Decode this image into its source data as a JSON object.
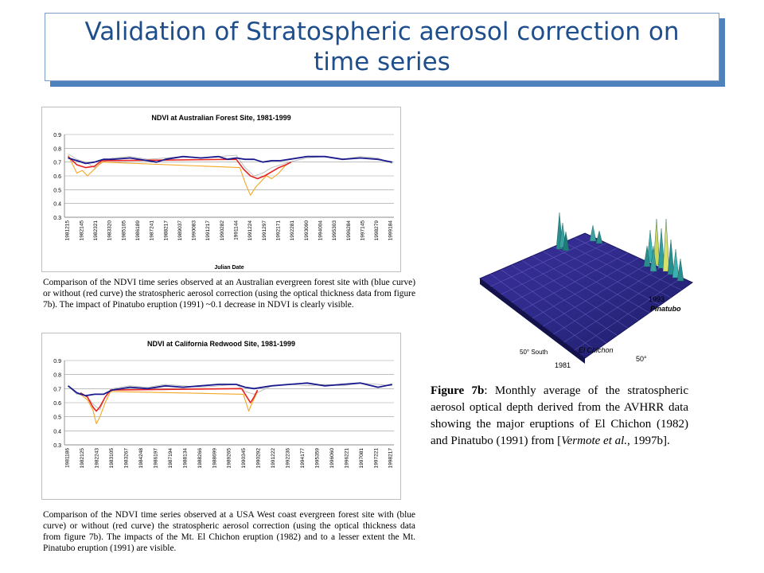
{
  "slide": {
    "title": "Validation of Stratospheric aerosol correction on time series",
    "caption1": "Comparison of the NDVI time series observed at an Australian evergreen forest site with (blue curve) or without (red curve) the stratospheric aerosol correction (using the optical thickness data from figure 7b). The impact of Pinatubo eruption (1991) ~0.1 decrease in NDVI is clearly visible.",
    "caption2": "Comparison of the NDVI time series observed at a USA West coast evergreen forest site with (blue curve) or without (red curve) the stratospheric aerosol correction (using the optical thickness data from figure 7b). The impacts of the Mt. El Chichon eruption (1982) and to a lesser extent the Mt. Pinatubo eruption (1991) are visible.",
    "figure_caption": {
      "label": "Figure 7b",
      "text_before": ": Monthly average of the stratospheric aerosol optical depth derived from the AVHRR data showing the major eruptions of El Chichon (1982) and Pinatubo (1991) from [",
      "citation": "Vermote et al.",
      "text_after": ", 1997b]."
    }
  },
  "colors": {
    "title_text": "#1f4e8c",
    "title_shadow": "#4f81bd",
    "blue_curve": "#1a1a8c",
    "red_curve": "#e8231f",
    "orange_curve": "#f5a623",
    "gray_curve": "#b3b3b3"
  },
  "chart_data": [
    {
      "type": "line",
      "title": "NDVI at Australian Forest Site, 1981-1999",
      "xlabel": "Julian Date",
      "ylabel": "",
      "ylim": [
        0.3,
        0.9
      ],
      "yticks": [
        "0.3",
        "0.4",
        "0.5",
        "0.6",
        "0.7",
        "0.8",
        "0.9"
      ],
      "xtick_labels": [
        "1981215",
        "1982145",
        "1982321",
        "1983320",
        "1985105",
        "1986189",
        "1987241",
        "1988217",
        "1989037",
        "1990083",
        "1991217",
        "1990282",
        "1991144",
        "1991224",
        "1991297",
        "1992171",
        "1992281",
        "1993090",
        "1994004",
        "1995303",
        "1996284",
        "1997145",
        "1998279",
        "1999184"
      ],
      "grid": true,
      "series": [
        {
          "key": "raw",
          "color": "gray_curve",
          "x": [
            1981.5,
            1982.0,
            1982.5,
            1983.0,
            1983.5,
            1984.0,
            1985.0,
            1986.0,
            1987.0,
            1988.0,
            1989.0,
            1990.0,
            1991.0,
            1991.5,
            1992.0,
            1992.5,
            1993.0,
            1994.0,
            1995.0,
            1996.0,
            1997.0,
            1998.0,
            1999.0,
            1999.8
          ],
          "y": [
            0.76,
            0.72,
            0.7,
            0.66,
            0.7,
            0.73,
            0.74,
            0.72,
            0.73,
            0.74,
            0.73,
            0.74,
            0.75,
            0.66,
            0.6,
            0.62,
            0.66,
            0.7,
            0.73,
            0.74,
            0.72,
            0.74,
            0.73,
            0.69
          ]
        },
        {
          "key": "without correction",
          "color": "orange_curve",
          "x": [
            1981.5,
            1982.0,
            1982.3,
            1982.6,
            1983.0,
            1983.4,
            1991.2,
            1991.5,
            1991.8,
            1992.1,
            1992.4,
            1992.7,
            1993.0,
            1993.4,
            1993.8
          ],
          "y": [
            0.75,
            0.62,
            0.64,
            0.6,
            0.65,
            0.7,
            0.66,
            0.55,
            0.46,
            0.52,
            0.56,
            0.6,
            0.58,
            0.62,
            0.68
          ]
        },
        {
          "key": "red curve",
          "color": "red_curve",
          "x": [
            1981.5,
            1982.0,
            1982.5,
            1983.0,
            1983.4,
            1991.0,
            1991.4,
            1991.8,
            1992.2,
            1992.6,
            1993.0,
            1993.4,
            1993.8,
            1994.1
          ],
          "y": [
            0.74,
            0.68,
            0.66,
            0.67,
            0.71,
            0.72,
            0.65,
            0.6,
            0.58,
            0.6,
            0.63,
            0.66,
            0.68,
            0.7
          ]
        },
        {
          "key": "blue curve",
          "color": "blue_curve",
          "x": [
            1981.5,
            1982.0,
            1982.5,
            1983.0,
            1983.5,
            1984.0,
            1985.0,
            1986.0,
            1986.5,
            1987.0,
            1988.0,
            1989.0,
            1990.0,
            1990.5,
            1991.0,
            1991.5,
            1992.0,
            1992.5,
            1993.0,
            1993.5,
            1994.0,
            1995.0,
            1996.0,
            1997.0,
            1998.0,
            1999.0,
            1999.8
          ],
          "y": [
            0.73,
            0.71,
            0.69,
            0.7,
            0.72,
            0.72,
            0.73,
            0.71,
            0.7,
            0.72,
            0.74,
            0.73,
            0.74,
            0.72,
            0.73,
            0.72,
            0.72,
            0.7,
            0.71,
            0.71,
            0.72,
            0.74,
            0.74,
            0.72,
            0.73,
            0.72,
            0.7
          ]
        }
      ]
    },
    {
      "type": "line",
      "title": "NDVI at California Redwood Site, 1981-1999",
      "xlabel": "",
      "ylabel": "",
      "ylim": [
        0.3,
        0.9
      ],
      "yticks": [
        "0.3",
        "0.4",
        "0.5",
        "0.6",
        "0.7",
        "0.8",
        "0.9"
      ],
      "xtick_labels": [
        "1981186",
        "1982125",
        "1982243",
        "1983105",
        "1983267",
        "1984248",
        "1986197",
        "1987194",
        "1988134",
        "1988266",
        "1988699",
        "1989265",
        "1990345",
        "1990292",
        "1991222",
        "1992236",
        "1994177",
        "1995359",
        "1996060",
        "1996221",
        "1997081",
        "1997221",
        "1998217"
      ],
      "grid": true,
      "series": [
        {
          "key": "raw",
          "color": "gray_curve",
          "x": [
            1981.5,
            1982.0,
            1982.5,
            1983.0,
            1983.3,
            1983.6,
            1984.0,
            1985.0,
            1986.0,
            1987.0,
            1988.0,
            1989.0,
            1990.0,
            1991.0,
            1991.5,
            1992.0,
            1993.0,
            1994.0,
            1995.0,
            1996.0,
            1997.0,
            1998.0,
            1999.0,
            1999.8
          ],
          "y": [
            0.72,
            0.66,
            0.65,
            0.58,
            0.55,
            0.64,
            0.7,
            0.72,
            0.71,
            0.73,
            0.72,
            0.71,
            0.72,
            0.73,
            0.68,
            0.66,
            0.72,
            0.73,
            0.72,
            0.73,
            0.72,
            0.74,
            0.73,
            0.72
          ]
        },
        {
          "key": "without correction",
          "color": "orange_curve",
          "x": [
            1982.2,
            1982.6,
            1982.9,
            1983.1,
            1983.3,
            1983.6,
            1983.9,
            1991.4,
            1991.7,
            1991.9,
            1992.2
          ],
          "y": [
            0.66,
            0.62,
            0.55,
            0.45,
            0.5,
            0.6,
            0.68,
            0.66,
            0.54,
            0.6,
            0.68
          ]
        },
        {
          "key": "red curve",
          "color": "red_curve",
          "x": [
            1982.2,
            1982.6,
            1982.9,
            1983.1,
            1983.3,
            1983.6,
            1983.9,
            1991.3,
            1991.6,
            1991.8,
            1992.0,
            1992.2
          ],
          "y": [
            0.67,
            0.64,
            0.57,
            0.54,
            0.57,
            0.64,
            0.69,
            0.7,
            0.64,
            0.6,
            0.64,
            0.69
          ]
        },
        {
          "key": "blue curve",
          "color": "blue_curve",
          "x": [
            1981.5,
            1982.0,
            1982.5,
            1983.0,
            1983.5,
            1984.0,
            1985.0,
            1986.0,
            1987.0,
            1988.0,
            1989.0,
            1990.0,
            1991.0,
            1991.5,
            1992.0,
            1993.0,
            1994.0,
            1995.0,
            1996.0,
            1997.0,
            1998.0,
            1999.0,
            1999.8
          ],
          "y": [
            0.72,
            0.67,
            0.65,
            0.66,
            0.66,
            0.69,
            0.71,
            0.7,
            0.72,
            0.71,
            0.72,
            0.73,
            0.73,
            0.71,
            0.7,
            0.72,
            0.73,
            0.74,
            0.72,
            0.73,
            0.74,
            0.71,
            0.73
          ]
        }
      ]
    }
  ],
  "figure_7b": {
    "image": "3D surface plot of stratospheric aerosol optical depth",
    "labels": {
      "year_1993": "1993",
      "pinatubo": "Pinatubo",
      "el_chichon": "El Chichon",
      "south": "50° South",
      "year_1981": "1981",
      "north": "50°"
    }
  }
}
